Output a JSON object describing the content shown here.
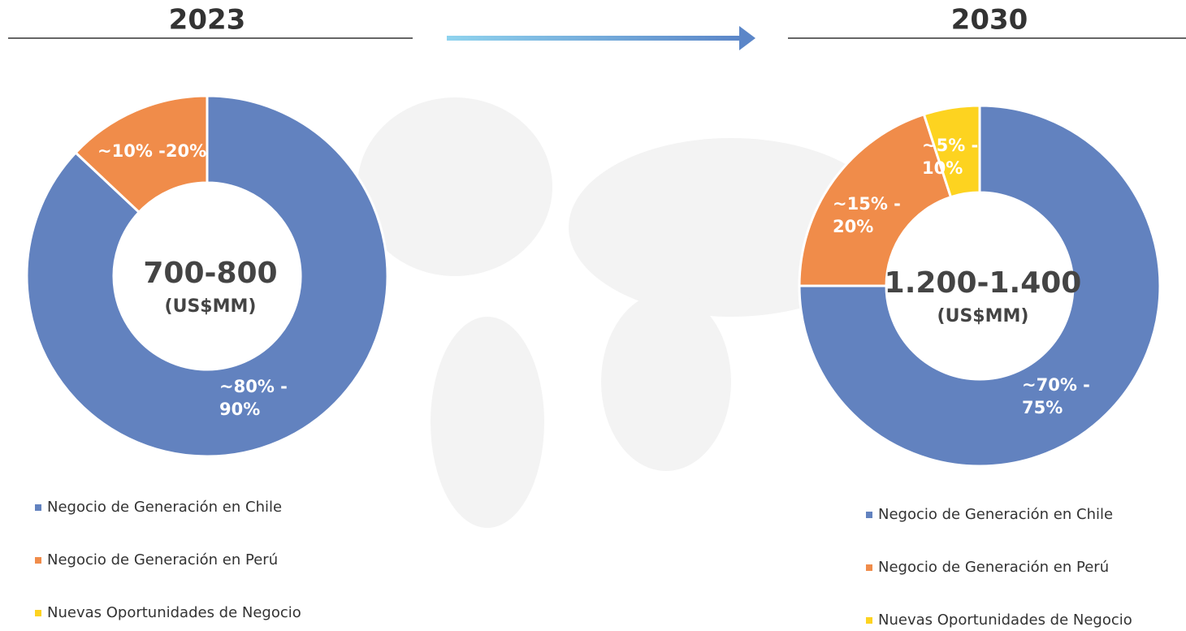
{
  "chart_data": [
    {
      "type": "pie",
      "donut": true,
      "title": "2023",
      "center_value": "700-800",
      "center_unit": "(US$MM)",
      "categories": [
        "Negocio de Generación en Chile",
        "Negocio de Generación en Perú",
        "Nuevas Oportunidades de Negocio"
      ],
      "values": [
        87,
        13,
        0
      ],
      "slice_labels": [
        "~80% - 90%",
        "~10% -20%",
        null
      ],
      "colors": [
        "#6282bf",
        "#f08c4a",
        "#fdd320"
      ]
    },
    {
      "type": "pie",
      "donut": true,
      "title": "2030",
      "center_value": "1.200-1.400",
      "center_unit": "(US$MM)",
      "categories": [
        "Negocio de Generación en Chile",
        "Negocio de Generación en Perú",
        "Nuevas Oportunidades de Negocio"
      ],
      "values": [
        75,
        20,
        5
      ],
      "slice_labels": [
        "~70% - 75%",
        "~15% - 20%",
        "~5% - 10%"
      ],
      "colors": [
        "#6282bf",
        "#f08c4a",
        "#fdd320"
      ]
    }
  ]
}
